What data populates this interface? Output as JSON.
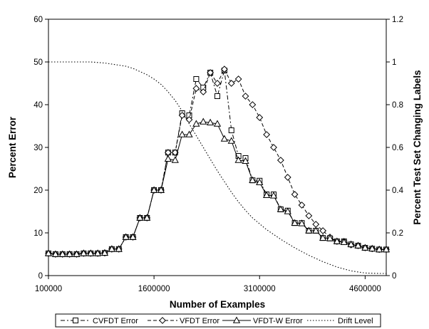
{
  "chart_data": {
    "type": "line",
    "xlabel": "Number of Examples",
    "ylabel": "Percent Error",
    "y2label": "Percent Test Set Changing Labels",
    "xlim": [
      100000,
      4900000
    ],
    "ylim": [
      0,
      60
    ],
    "y2lim": [
      0,
      1.2
    ],
    "x_ticks": [
      100000,
      1600000,
      3100000,
      4600000
    ],
    "x_tick_labels": [
      "100000",
      "1600000",
      "3100000",
      "4600000"
    ],
    "y_ticks": [
      0,
      10,
      20,
      30,
      40,
      50,
      60
    ],
    "y_tick_labels": [
      "0",
      "10",
      "20",
      "30",
      "40",
      "50",
      "60"
    ],
    "y2_ticks": [
      0,
      0.2,
      0.4,
      0.6,
      0.8,
      1,
      1.2
    ],
    "y2_tick_labels": [
      "0",
      "0.2",
      "0.4",
      "0.6",
      "0.8",
      "1",
      "1.2"
    ],
    "grid": false,
    "legend_position": "bottom",
    "series": [
      {
        "name": "CVFDT Error",
        "axis": "left",
        "marker": "square",
        "dash": "dash-dot",
        "x": [
          100000,
          200000,
          300000,
          400000,
          500000,
          600000,
          700000,
          800000,
          900000,
          1000000,
          1100000,
          1200000,
          1300000,
          1400000,
          1500000,
          1600000,
          1700000,
          1800000,
          1900000,
          2000000,
          2100000,
          2200000,
          2300000,
          2400000,
          2500000,
          2600000,
          2700000,
          2800000,
          2900000,
          3000000,
          3100000,
          3200000,
          3300000,
          3400000,
          3500000,
          3600000,
          3700000,
          3800000,
          3900000,
          4000000,
          4100000,
          4200000,
          4300000,
          4400000,
          4500000,
          4600000,
          4700000,
          4800000,
          4900000
        ],
        "values": [
          5.2,
          5.0,
          5.0,
          5.0,
          5.0,
          5.2,
          5.2,
          5.2,
          5.3,
          6.2,
          6.2,
          9.0,
          9.0,
          13.5,
          13.5,
          20.0,
          20.0,
          28.8,
          28.8,
          38.0,
          37.5,
          46.0,
          44.0,
          47.5,
          42.0,
          48.0,
          34.0,
          28.0,
          27.5,
          22.3,
          22.2,
          19.0,
          19.0,
          15.5,
          15.2,
          12.3,
          12.3,
          10.5,
          10.5,
          8.8,
          8.7,
          8.0,
          8.0,
          7.3,
          7.0,
          6.5,
          6.3,
          6.1,
          6.1
        ]
      },
      {
        "name": "VFDT Error",
        "axis": "left",
        "marker": "diamond",
        "dash": "dash",
        "x": [
          100000,
          200000,
          300000,
          400000,
          500000,
          600000,
          700000,
          800000,
          900000,
          1000000,
          1100000,
          1200000,
          1300000,
          1400000,
          1500000,
          1600000,
          1700000,
          1800000,
          1900000,
          2000000,
          2100000,
          2200000,
          2300000,
          2400000,
          2500000,
          2600000,
          2700000,
          2800000,
          2900000,
          3000000,
          3100000,
          3200000,
          3300000,
          3400000,
          3500000,
          3600000,
          3700000,
          3800000,
          3900000,
          4000000,
          4100000,
          4200000,
          4300000,
          4400000,
          4500000,
          4600000,
          4700000,
          4800000,
          4900000
        ],
        "values": [
          5.2,
          5.0,
          5.0,
          5.0,
          5.0,
          5.2,
          5.2,
          5.2,
          5.3,
          6.2,
          6.2,
          9.0,
          9.0,
          13.5,
          13.5,
          20.0,
          20.0,
          28.8,
          28.8,
          37.5,
          36.5,
          43.8,
          43.0,
          47.5,
          45.0,
          48.3,
          45.0,
          46.0,
          42.0,
          40.0,
          37.0,
          33.0,
          30.0,
          27.0,
          23.0,
          19.0,
          16.5,
          14.0,
          12.0,
          10.5,
          9.0,
          8.0,
          8.0,
          7.2,
          7.0,
          6.5,
          6.3,
          6.1,
          6.1
        ]
      },
      {
        "name": "VFDT-W Error",
        "axis": "left",
        "marker": "triangle",
        "dash": "solid",
        "x": [
          100000,
          200000,
          300000,
          400000,
          500000,
          600000,
          700000,
          800000,
          900000,
          1000000,
          1100000,
          1200000,
          1300000,
          1400000,
          1500000,
          1600000,
          1700000,
          1800000,
          1900000,
          2000000,
          2100000,
          2200000,
          2300000,
          2400000,
          2500000,
          2600000,
          2700000,
          2800000,
          2900000,
          3000000,
          3100000,
          3200000,
          3300000,
          3400000,
          3500000,
          3600000,
          3700000,
          3800000,
          3900000,
          4000000,
          4100000,
          4200000,
          4300000,
          4400000,
          4500000,
          4600000,
          4700000,
          4800000,
          4900000
        ],
        "values": [
          5.2,
          5.0,
          5.0,
          5.0,
          5.0,
          5.2,
          5.2,
          5.2,
          5.3,
          6.2,
          6.2,
          9.0,
          9.0,
          13.5,
          13.5,
          20.0,
          20.0,
          27.3,
          27.0,
          33.0,
          33.0,
          35.5,
          36.0,
          35.8,
          35.5,
          32.0,
          31.5,
          27.0,
          26.8,
          22.3,
          21.8,
          18.8,
          18.7,
          15.5,
          15.0,
          12.3,
          12.2,
          10.5,
          10.5,
          8.8,
          8.7,
          8.0,
          7.8,
          7.3,
          7.0,
          6.5,
          6.3,
          6.1,
          6.1
        ]
      },
      {
        "name": "Drift Level",
        "axis": "right",
        "marker": "none",
        "dash": "dotted",
        "x": [
          100000,
          400000,
          700000,
          900000,
          1000000,
          1100000,
          1200000,
          1300000,
          1400000,
          1500000,
          1600000,
          1700000,
          1800000,
          1900000,
          2000000,
          2100000,
          2200000,
          2300000,
          2400000,
          2500000,
          2600000,
          2700000,
          2800000,
          2900000,
          3000000,
          3200000,
          3400000,
          3600000,
          3800000,
          4000000,
          4200000,
          4400000,
          4600000,
          4800000,
          4900000
        ],
        "values": [
          1.0,
          1.0,
          1.0,
          0.995,
          0.99,
          0.985,
          0.98,
          0.97,
          0.955,
          0.94,
          0.92,
          0.895,
          0.86,
          0.82,
          0.77,
          0.71,
          0.655,
          0.6,
          0.545,
          0.49,
          0.44,
          0.39,
          0.345,
          0.305,
          0.27,
          0.215,
          0.17,
          0.13,
          0.095,
          0.065,
          0.04,
          0.022,
          0.012,
          0.01,
          0.01
        ]
      }
    ]
  }
}
